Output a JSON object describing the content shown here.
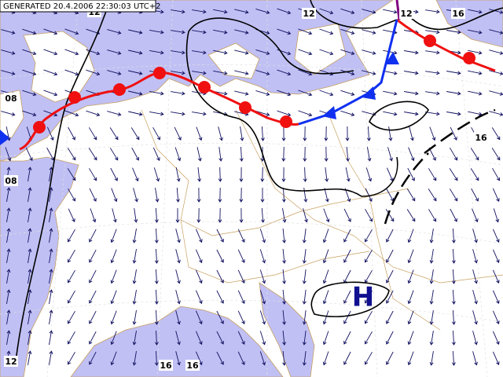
{
  "header": {
    "title": "GENERATED 20.4.2006 22:30:03 UTC+2"
  },
  "isobar_labels": [
    "12",
    "12",
    "12",
    "16",
    "08",
    "16",
    "08",
    "12",
    "16",
    "16"
  ],
  "pressure_centers": [
    "H"
  ]
}
